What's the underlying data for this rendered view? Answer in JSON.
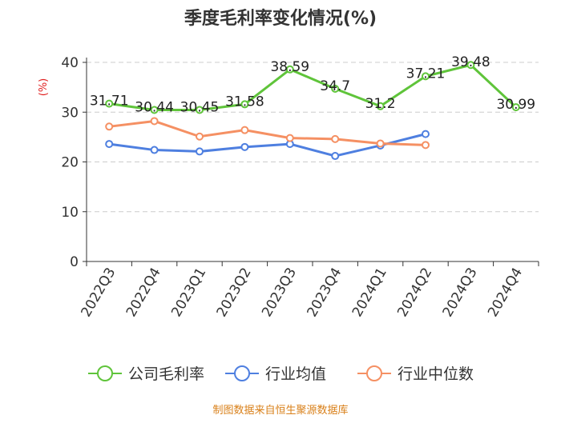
{
  "chart_data": {
    "type": "line",
    "title": "季度毛利率变化情况(%)",
    "ylabel": "(%)",
    "categories": [
      "2022Q3",
      "2022Q4",
      "2023Q1",
      "2023Q2",
      "2023Q3",
      "2023Q4",
      "2024Q1",
      "2024Q2",
      "2024Q3",
      "2024Q4"
    ],
    "ylim": [
      0,
      40
    ],
    "yticks": [
      0,
      10,
      20,
      30,
      40
    ],
    "grid": true,
    "legend_position": "bottom",
    "series": [
      {
        "name": "公司毛利率",
        "color": "#5fc43a",
        "values": [
          31.71,
          30.44,
          30.45,
          31.58,
          38.59,
          34.7,
          31.2,
          37.21,
          39.48,
          30.99
        ],
        "labels": [
          "31.71",
          "30.44",
          "30.45",
          "31.58",
          "38.59",
          "34.7",
          "31.2",
          "37.21",
          "39.48",
          "30.99"
        ]
      },
      {
        "name": "行业均值",
        "color": "#4e7fe0",
        "values": [
          23.6,
          22.4,
          22.1,
          23.0,
          23.6,
          21.2,
          23.3,
          25.6,
          null,
          null
        ]
      },
      {
        "name": "行业中位数",
        "color": "#f59063",
        "values": [
          27.1,
          28.2,
          25.1,
          26.4,
          24.8,
          24.6,
          23.7,
          23.4,
          null,
          null
        ]
      }
    ]
  },
  "source": "制图数据来自恒生聚源数据库",
  "colors": {
    "title": "#333333",
    "ylabel": "#e02020",
    "axis": "#333333",
    "grid": "#cccccc",
    "source": "#d9801a"
  }
}
